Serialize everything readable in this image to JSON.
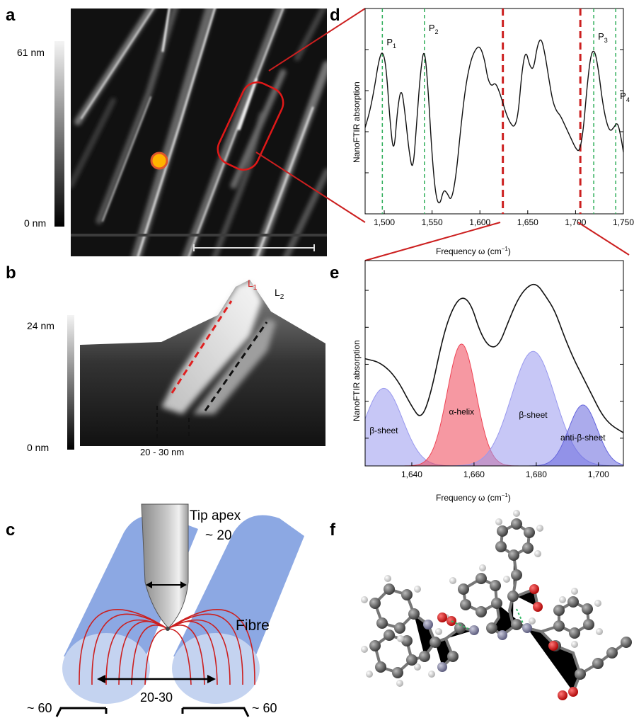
{
  "figure": {
    "panels": {
      "a": "a",
      "b": "b",
      "c": "c",
      "d": "d",
      "e": "e",
      "f": "f"
    },
    "a": {
      "colorbar_max": "61 nm",
      "colorbar_min": "0 nm"
    },
    "b": {
      "colorbar_max": "24 nm",
      "colorbar_min": "0 nm",
      "line1_main": "L",
      "line1_sub": "1",
      "line2_main": "L",
      "line2_sub": "2",
      "width_label": "20 - 30 nm"
    },
    "c": {
      "tip_apex": "Tip apex",
      "tip_size": "~ 20",
      "fibre": "Fibre",
      "gap": "20-30",
      "left_width": "~ 60",
      "right_width": "~ 60"
    },
    "colors": {
      "accent_red": "#cc1f1f",
      "green_dash": "#2fae5a",
      "beta_blue": "#9999ee",
      "alpha_red": "#ee4455",
      "anti_beta": "#6666dd",
      "fibre_blue": "#7f9fe0"
    }
  },
  "chart_data": [
    {
      "panel": "d",
      "type": "line",
      "xlabel": "Frequency ω (cm⁻¹)",
      "ylabel": "NanoFTIR absorption",
      "xlim": [
        1480,
        1750
      ],
      "x_ticks": [
        "1,500",
        "1,550",
        "1,600",
        "1,650",
        "1,700",
        "1,750"
      ],
      "x_tick_values": [
        1500,
        1550,
        1600,
        1650,
        1700,
        1750
      ],
      "peaks": [
        {
          "main": "P",
          "sub": "1",
          "x": 1498
        },
        {
          "main": "P",
          "sub": "2",
          "x": 1542
        },
        {
          "main": "P",
          "sub": "3",
          "x": 1719
        },
        {
          "main": "P",
          "sub": "4",
          "x": 1742
        }
      ],
      "zoom_range": [
        1624,
        1705
      ],
      "x": [
        1480,
        1485,
        1490,
        1494,
        1498,
        1502,
        1506,
        1510,
        1514,
        1518,
        1522,
        1526,
        1530,
        1534,
        1538,
        1542,
        1546,
        1550,
        1554,
        1558,
        1562,
        1566,
        1570,
        1575,
        1580,
        1585,
        1590,
        1595,
        1600,
        1605,
        1608,
        1612,
        1616,
        1620,
        1624,
        1628,
        1632,
        1636,
        1640,
        1644,
        1648,
        1652,
        1656,
        1660,
        1664,
        1668,
        1672,
        1676,
        1680,
        1684,
        1688,
        1692,
        1696,
        1700,
        1704,
        1708,
        1712,
        1716,
        1720,
        1724,
        1728,
        1732,
        1736,
        1740,
        1744,
        1748,
        1750
      ],
      "y": [
        0.42,
        0.5,
        0.62,
        0.74,
        0.8,
        0.72,
        0.45,
        0.28,
        0.52,
        0.62,
        0.48,
        0.3,
        0.2,
        0.45,
        0.7,
        0.82,
        0.6,
        0.28,
        0.08,
        0.04,
        0.12,
        0.1,
        0.06,
        0.18,
        0.42,
        0.62,
        0.74,
        0.8,
        0.82,
        0.75,
        0.66,
        0.62,
        0.64,
        0.6,
        0.54,
        0.48,
        0.44,
        0.42,
        0.48,
        0.7,
        0.8,
        0.72,
        0.7,
        0.82,
        0.86,
        0.78,
        0.66,
        0.55,
        0.5,
        0.48,
        0.44,
        0.4,
        0.36,
        0.32,
        0.3,
        0.4,
        0.62,
        0.78,
        0.8,
        0.7,
        0.55,
        0.45,
        0.4,
        0.42,
        0.45,
        0.36,
        0.3
      ]
    },
    {
      "panel": "e",
      "type": "area",
      "xlabel": "Frequency ω (cm⁻¹)",
      "ylabel": "NanoFTIR absorption",
      "xlim": [
        1625,
        1708
      ],
      "x_ticks": [
        "1,640",
        "1,660",
        "1,680",
        "1,700"
      ],
      "x_tick_values": [
        1640,
        1660,
        1680,
        1700
      ],
      "spectrum_x": [
        1625,
        1630,
        1635,
        1640,
        1643,
        1646,
        1650,
        1653,
        1656,
        1659,
        1662,
        1665,
        1668,
        1671,
        1674,
        1677,
        1680,
        1683,
        1686,
        1689,
        1692,
        1695,
        1698,
        1701,
        1704,
        1708
      ],
      "spectrum_y": [
        0.58,
        0.56,
        0.48,
        0.32,
        0.25,
        0.38,
        0.7,
        0.85,
        0.92,
        0.88,
        0.72,
        0.64,
        0.65,
        0.78,
        0.9,
        0.97,
        0.99,
        0.92,
        0.84,
        0.7,
        0.58,
        0.48,
        0.38,
        0.28,
        0.22,
        0.18
      ],
      "bands": [
        {
          "label": "β-sheet",
          "center": 1631,
          "height": 0.42,
          "width": 6,
          "color": "#9999ee"
        },
        {
          "label": "α-helix",
          "center": 1656,
          "height": 0.66,
          "width": 4.6,
          "color": "#ee4455"
        },
        {
          "label": "β-sheet",
          "center": 1679,
          "height": 0.62,
          "width": 7,
          "color": "#9999ee"
        },
        {
          "label": "anti-β-sheet",
          "center": 1695,
          "height": 0.33,
          "width": 4.6,
          "color": "#6666dd"
        }
      ]
    }
  ]
}
